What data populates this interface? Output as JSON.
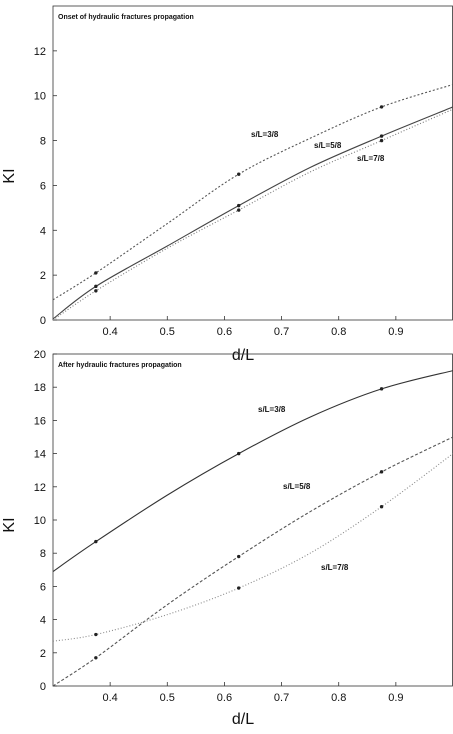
{
  "chart_data": [
    {
      "type": "line",
      "title": "Onset of hydraulic fractures propagation",
      "xlabel": "d/L",
      "ylabel": "KI",
      "xlim": [
        0.3,
        1.0
      ],
      "ylim": [
        0,
        14
      ],
      "x_ticks": [
        "0.4",
        "0.5",
        "0.6",
        "0.7",
        "0.8",
        "0.9"
      ],
      "y_ticks": [
        "0",
        "2",
        "4",
        "6",
        "8",
        "10",
        "12"
      ],
      "grid": false,
      "series": [
        {
          "name": "s/L=3/8",
          "color": "#555555",
          "dash": "2,2",
          "x": [
            0.3,
            0.375,
            0.5,
            0.625,
            0.75,
            0.875,
            1.0
          ],
          "y": [
            0.9,
            2.1,
            4.3,
            6.5,
            8.1,
            9.5,
            10.5
          ],
          "markers_x": [
            0.375,
            0.625,
            0.875
          ],
          "markers_y": [
            2.1,
            6.5,
            9.5
          ]
        },
        {
          "name": "s/L=5/8",
          "color": "#444444",
          "dash": "",
          "x": [
            0.3,
            0.375,
            0.5,
            0.625,
            0.75,
            0.875,
            1.0
          ],
          "y": [
            0.05,
            1.5,
            3.3,
            5.1,
            6.8,
            8.2,
            9.5
          ],
          "markers_x": [
            0.375,
            0.625,
            0.875
          ],
          "markers_y": [
            1.5,
            5.1,
            8.2
          ]
        },
        {
          "name": "s/L=7/8",
          "color": "#777777",
          "dash": "1,2",
          "x": [
            0.3,
            0.375,
            0.5,
            0.625,
            0.75,
            0.875,
            1.0
          ],
          "y": [
            0.0,
            1.3,
            3.2,
            4.9,
            6.6,
            8.0,
            9.4
          ],
          "markers_x": [
            0.375,
            0.625,
            0.875
          ],
          "markers_y": [
            1.3,
            4.9,
            8.0
          ]
        }
      ]
    },
    {
      "type": "line",
      "title": "After hydraulic fractures propagation",
      "xlabel": "d/L",
      "ylabel": "KI",
      "xlim": [
        0.3,
        1.0
      ],
      "ylim": [
        0,
        20
      ],
      "x_ticks": [
        "0.4",
        "0.5",
        "0.6",
        "0.7",
        "0.8",
        "0.9"
      ],
      "y_ticks": [
        "0",
        "2",
        "4",
        "6",
        "8",
        "10",
        "12",
        "14",
        "16",
        "18",
        "20"
      ],
      "grid": false,
      "series": [
        {
          "name": "s/L=3/8",
          "color": "#333333",
          "dash": "",
          "x": [
            0.3,
            0.375,
            0.5,
            0.625,
            0.75,
            0.875,
            1.0
          ],
          "y": [
            6.9,
            8.7,
            11.5,
            14.0,
            16.2,
            17.9,
            19.0
          ],
          "markers_x": [
            0.375,
            0.625,
            0.875
          ],
          "markers_y": [
            8.7,
            14.0,
            17.9
          ]
        },
        {
          "name": "s/L=5/8",
          "color": "#555555",
          "dash": "3,2",
          "x": [
            0.3,
            0.375,
            0.5,
            0.625,
            0.75,
            0.875,
            1.0
          ],
          "y": [
            0.0,
            1.7,
            4.9,
            7.8,
            10.5,
            12.9,
            15.0
          ],
          "markers_x": [
            0.375,
            0.625,
            0.875
          ],
          "markers_y": [
            1.7,
            7.8,
            12.9
          ]
        },
        {
          "name": "s/L=7/8",
          "color": "#888888",
          "dash": "1,2",
          "x": [
            0.3,
            0.375,
            0.5,
            0.625,
            0.75,
            0.875,
            1.0
          ],
          "y": [
            2.7,
            3.1,
            4.3,
            5.9,
            8.0,
            10.8,
            14.0
          ],
          "markers_x": [
            0.375,
            0.625,
            0.875
          ],
          "markers_y": [
            3.1,
            5.9,
            10.8
          ]
        }
      ]
    }
  ]
}
